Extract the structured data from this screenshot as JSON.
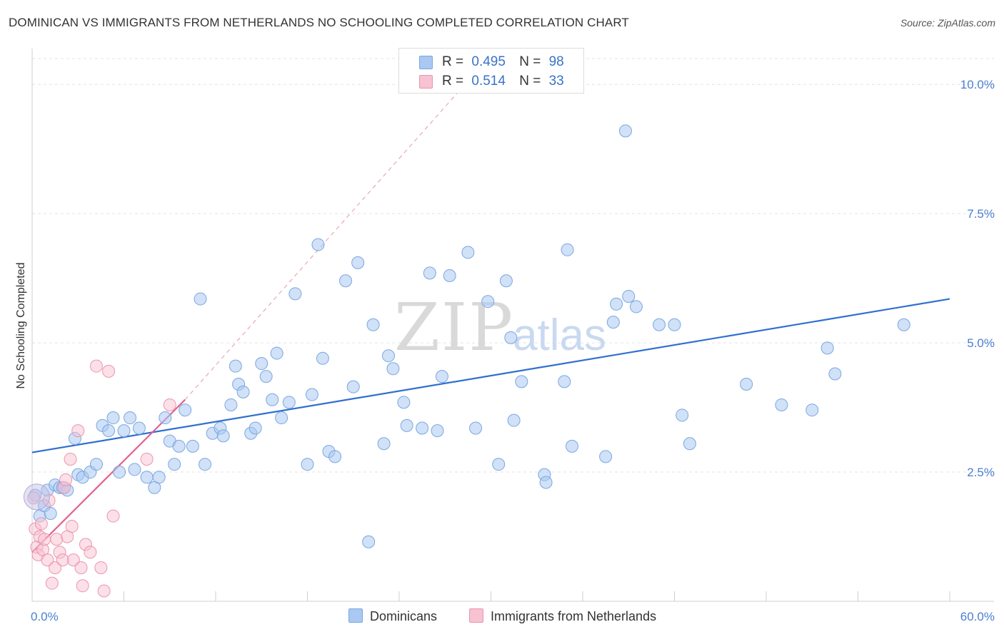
{
  "title": "DOMINICAN VS IMMIGRANTS FROM NETHERLANDS NO SCHOOLING COMPLETED CORRELATION CHART",
  "source": "Source: ZipAtlas.com",
  "watermark": {
    "zip": "ZIP",
    "atlas": "atlas"
  },
  "legend_top": [
    {
      "r_label": "R =",
      "r_value": "0.495",
      "n_label": "N =",
      "n_value": "98",
      "color": "#a9c8f2",
      "border": "#7aa7e0"
    },
    {
      "r_label": "R =",
      "r_value": "0.514",
      "n_label": "N =",
      "n_value": "33",
      "color": "#f7c2d2",
      "border": "#ec94b0"
    }
  ],
  "legend_bottom": [
    {
      "label": "Dominicans",
      "color": "#a9c8f2",
      "border": "#7aa7e0"
    },
    {
      "label": "Immigrants from Netherlands",
      "color": "#f7c2d2",
      "border": "#ec94b0"
    }
  ],
  "chart_data": {
    "type": "scatter",
    "title": "DOMINICAN VS IMMIGRANTS FROM NETHERLANDS NO SCHOOLING COMPLETED CORRELATION CHART",
    "xlabel": "",
    "ylabel": "No Schooling Completed",
    "xlim": [
      0,
      60
    ],
    "ylim": [
      0,
      10.5
    ],
    "x_tick_labels": [
      "0.0%",
      "60.0%"
    ],
    "y_ticks": [
      2.5,
      5.0,
      7.5,
      10.0
    ],
    "y_tick_labels": [
      "2.5%",
      "5.0%",
      "7.5%",
      "10.0%"
    ],
    "grid": true,
    "legend_position": "top-center",
    "colors": {
      "Dominicans": "#6a9de0",
      "Immigrants from Netherlands": "#e97fa3",
      "trend_blue": "#2f6fd0",
      "trend_pink": "#e0628f"
    },
    "series": [
      {
        "name": "Dominicans",
        "points": [
          [
            0.2,
            2.05
          ],
          [
            0.5,
            1.65
          ],
          [
            0.8,
            1.85
          ],
          [
            1.0,
            2.15
          ],
          [
            1.2,
            1.7
          ],
          [
            1.5,
            2.25
          ],
          [
            1.8,
            2.2
          ],
          [
            2.0,
            2.2
          ],
          [
            2.3,
            2.15
          ],
          [
            2.8,
            3.15
          ],
          [
            3.0,
            2.45
          ],
          [
            3.3,
            2.4
          ],
          [
            3.8,
            2.5
          ],
          [
            4.2,
            2.65
          ],
          [
            4.6,
            3.4
          ],
          [
            5.0,
            3.3
          ],
          [
            5.3,
            3.55
          ],
          [
            5.7,
            2.5
          ],
          [
            6.0,
            3.3
          ],
          [
            6.4,
            3.55
          ],
          [
            6.7,
            2.55
          ],
          [
            7.0,
            3.35
          ],
          [
            7.5,
            2.4
          ],
          [
            8.0,
            2.2
          ],
          [
            8.3,
            2.4
          ],
          [
            8.7,
            3.55
          ],
          [
            9.0,
            3.1
          ],
          [
            9.3,
            2.65
          ],
          [
            9.6,
            3.0
          ],
          [
            10.0,
            3.7
          ],
          [
            10.5,
            3.0
          ],
          [
            11.0,
            5.85
          ],
          [
            11.3,
            2.65
          ],
          [
            11.8,
            3.25
          ],
          [
            12.3,
            3.35
          ],
          [
            12.5,
            3.2
          ],
          [
            13.0,
            3.8
          ],
          [
            13.3,
            4.55
          ],
          [
            13.5,
            4.2
          ],
          [
            13.8,
            4.05
          ],
          [
            14.3,
            3.25
          ],
          [
            14.6,
            3.35
          ],
          [
            15.0,
            4.6
          ],
          [
            15.3,
            4.35
          ],
          [
            15.7,
            3.9
          ],
          [
            16.0,
            4.8
          ],
          [
            16.3,
            3.55
          ],
          [
            16.8,
            3.85
          ],
          [
            17.2,
            5.95
          ],
          [
            18.0,
            2.65
          ],
          [
            18.3,
            4.0
          ],
          [
            18.7,
            6.9
          ],
          [
            19.0,
            4.7
          ],
          [
            19.4,
            2.9
          ],
          [
            19.8,
            2.8
          ],
          [
            20.5,
            6.2
          ],
          [
            21.0,
            4.15
          ],
          [
            21.3,
            6.55
          ],
          [
            22.0,
            1.15
          ],
          [
            22.3,
            5.35
          ],
          [
            23.0,
            3.05
          ],
          [
            23.3,
            4.75
          ],
          [
            23.6,
            4.5
          ],
          [
            24.3,
            3.85
          ],
          [
            24.5,
            3.4
          ],
          [
            25.5,
            3.35
          ],
          [
            26.0,
            6.35
          ],
          [
            26.5,
            3.3
          ],
          [
            26.8,
            4.35
          ],
          [
            27.3,
            6.3
          ],
          [
            28.5,
            6.75
          ],
          [
            29.0,
            3.35
          ],
          [
            29.8,
            5.8
          ],
          [
            30.5,
            2.65
          ],
          [
            31.0,
            6.2
          ],
          [
            31.3,
            5.1
          ],
          [
            31.5,
            3.5
          ],
          [
            32.0,
            4.25
          ],
          [
            33.5,
            2.45
          ],
          [
            33.6,
            2.3
          ],
          [
            34.8,
            4.25
          ],
          [
            35.0,
            6.8
          ],
          [
            35.3,
            3.0
          ],
          [
            37.5,
            2.8
          ],
          [
            38.0,
            5.4
          ],
          [
            38.2,
            5.75
          ],
          [
            38.8,
            9.1
          ],
          [
            39.0,
            5.9
          ],
          [
            39.5,
            5.7
          ],
          [
            41.0,
            5.35
          ],
          [
            42.0,
            5.35
          ],
          [
            42.5,
            3.6
          ],
          [
            43.0,
            3.05
          ],
          [
            46.7,
            4.2
          ],
          [
            49.0,
            3.8
          ],
          [
            51.0,
            3.7
          ],
          [
            52.0,
            4.9
          ],
          [
            52.5,
            4.4
          ],
          [
            57.0,
            5.35
          ]
        ],
        "trend": {
          "from": [
            0,
            2.88
          ],
          "to": [
            60,
            5.85
          ]
        }
      },
      {
        "name": "Immigrants from Netherlands",
        "points": [
          [
            0.1,
            2.0
          ],
          [
            0.2,
            1.4
          ],
          [
            0.3,
            1.05
          ],
          [
            0.4,
            0.9
          ],
          [
            0.5,
            1.25
          ],
          [
            0.6,
            1.5
          ],
          [
            0.7,
            1.0
          ],
          [
            0.8,
            1.2
          ],
          [
            1.0,
            0.8
          ],
          [
            1.1,
            1.95
          ],
          [
            1.3,
            0.35
          ],
          [
            1.5,
            0.65
          ],
          [
            1.6,
            1.2
          ],
          [
            1.8,
            0.95
          ],
          [
            2.0,
            0.8
          ],
          [
            2.1,
            2.2
          ],
          [
            2.2,
            2.35
          ],
          [
            2.3,
            1.25
          ],
          [
            2.5,
            2.75
          ],
          [
            2.6,
            1.45
          ],
          [
            2.7,
            0.8
          ],
          [
            3.0,
            3.3
          ],
          [
            3.2,
            0.65
          ],
          [
            3.3,
            0.3
          ],
          [
            3.5,
            1.1
          ],
          [
            3.8,
            0.95
          ],
          [
            4.2,
            4.55
          ],
          [
            4.5,
            0.65
          ],
          [
            4.7,
            0.2
          ],
          [
            5.0,
            4.45
          ],
          [
            5.3,
            1.65
          ],
          [
            7.5,
            2.75
          ],
          [
            9.0,
            3.8
          ]
        ],
        "trend": {
          "from": [
            0,
            0.95
          ],
          "to": [
            10,
            3.9
          ]
        },
        "trend_extended": {
          "from": [
            10,
            3.9
          ],
          "to": [
            28,
            9.9
          ]
        }
      }
    ]
  }
}
